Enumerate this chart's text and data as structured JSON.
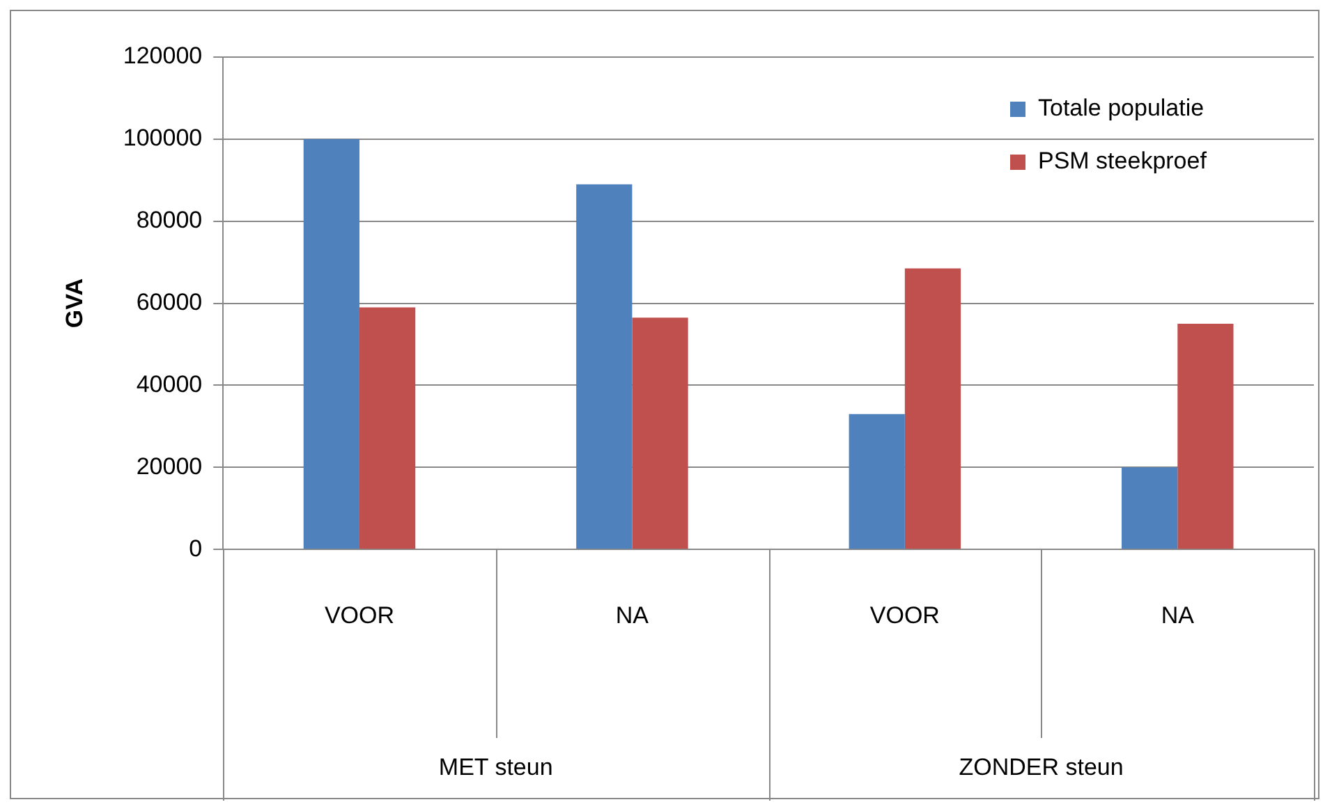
{
  "chart_data": {
    "type": "bar",
    "ylabel": "GVA",
    "categories": [
      "VOOR",
      "NA",
      "VOOR",
      "NA"
    ],
    "series": [
      {
        "name": "Totale populatie",
        "color": "#4f81bd",
        "values": [
          100000,
          89000,
          33000,
          20000
        ]
      },
      {
        "name": "PSM steekproef",
        "color": "#c0504d",
        "values": [
          59000,
          56500,
          68500,
          55000
        ]
      }
    ],
    "ylim": [
      0,
      120000
    ],
    "yticks": [
      0,
      20000,
      40000,
      60000,
      80000,
      100000,
      120000
    ],
    "grid": "y",
    "legend": "top right",
    "annotations": [
      "MET steun",
      "ZONDER steun"
    ]
  }
}
